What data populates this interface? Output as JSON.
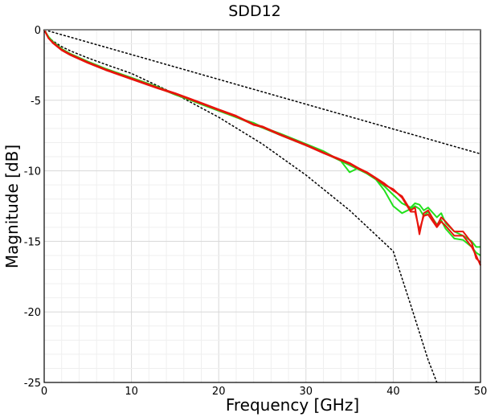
{
  "chart_data": {
    "type": "line",
    "title": "SDD12",
    "xlabel": "Frequency [GHz]",
    "ylabel": "Magnitude [dB]",
    "xlim": [
      0,
      50
    ],
    "ylim": [
      -25,
      0
    ],
    "xticks": [
      0,
      10,
      20,
      30,
      40,
      50
    ],
    "yticks": [
      0,
      -5,
      -10,
      -15,
      -20,
      -25
    ],
    "grid": "on (major and minor)",
    "legend": "none",
    "x": [
      0,
      0.5,
      1,
      2,
      3,
      5,
      7,
      10,
      13,
      15,
      17,
      20,
      22,
      24,
      25,
      27,
      30,
      32,
      34,
      35,
      36,
      37,
      38,
      39,
      40,
      41,
      42,
      42.5,
      43,
      43.5,
      44,
      45,
      45.5,
      46,
      47,
      48,
      49,
      49.5,
      50
    ],
    "series": [
      {
        "color": "#e8140c",
        "values": [
          0,
          -0.6,
          -0.9,
          -1.4,
          -1.75,
          -2.3,
          -2.8,
          -3.45,
          -4.1,
          -4.5,
          -4.95,
          -5.65,
          -6.1,
          -6.7,
          -6.85,
          -7.4,
          -8.15,
          -8.7,
          -9.2,
          -9.45,
          -9.8,
          -10.1,
          -10.5,
          -10.9,
          -11.4,
          -11.8,
          -12.8,
          -12.6,
          -14.5,
          -13.0,
          -12.8,
          -13.9,
          -13.3,
          -13.6,
          -14.3,
          -14.3,
          -15.1,
          -16.2,
          -16.5
        ]
      },
      {
        "color": "#e8140c",
        "values": [
          0,
          -0.6,
          -0.95,
          -1.45,
          -1.8,
          -2.35,
          -2.85,
          -3.5,
          -4.15,
          -4.55,
          -5.0,
          -5.7,
          -6.15,
          -6.75,
          -6.9,
          -7.45,
          -8.2,
          -8.75,
          -9.25,
          -9.5,
          -9.85,
          -10.15,
          -10.55,
          -11.0,
          -11.3,
          -11.9,
          -12.9,
          -12.9,
          -14.2,
          -13.2,
          -13.1,
          -14.0,
          -13.6,
          -13.9,
          -14.6,
          -14.6,
          -15.4,
          -16.0,
          -16.7
        ]
      },
      {
        "color": "#22e01c",
        "values": [
          0,
          -0.5,
          -0.85,
          -1.35,
          -1.7,
          -2.25,
          -2.75,
          -3.4,
          -4.05,
          -4.55,
          -5.0,
          -5.7,
          -6.2,
          -6.6,
          -6.9,
          -7.35,
          -8.1,
          -8.6,
          -9.3,
          -9.6,
          -9.9,
          -10.2,
          -10.6,
          -11.1,
          -11.7,
          -12.3,
          -12.6,
          -12.3,
          -12.4,
          -12.8,
          -12.6,
          -13.3,
          -13.0,
          -13.7,
          -14.3,
          -14.6,
          -15.0,
          -15.4,
          -15.4
        ]
      },
      {
        "color": "#22e01c",
        "values": [
          0,
          -0.55,
          -0.9,
          -1.4,
          -1.75,
          -2.3,
          -2.8,
          -3.45,
          -4.1,
          -4.6,
          -5.05,
          -5.75,
          -6.2,
          -6.7,
          -6.95,
          -7.45,
          -8.2,
          -8.7,
          -9.3,
          -10.1,
          -9.8,
          -10.2,
          -10.6,
          -11.4,
          -12.5,
          -13.0,
          -12.7,
          -12.5,
          -12.7,
          -13.2,
          -12.9,
          -13.8,
          -13.5,
          -14.1,
          -14.8,
          -14.9,
          -15.4,
          -15.8,
          -16.0
        ]
      },
      {
        "color": "#000000",
        "style": "dotted",
        "x": [
          0,
          10,
          20,
          30,
          40,
          50
        ],
        "values": [
          0,
          -1.76,
          -3.52,
          -5.28,
          -7.04,
          -8.8
        ]
      },
      {
        "color": "#000000",
        "style": "dotted",
        "x": [
          0,
          0.5,
          1,
          2,
          3,
          5,
          7,
          10,
          15,
          20,
          25,
          30,
          35,
          40,
          42,
          44,
          45
        ],
        "values": [
          0,
          -0.55,
          -0.8,
          -1.2,
          -1.5,
          -2.0,
          -2.45,
          -3.1,
          -4.55,
          -6.2,
          -8.1,
          -10.3,
          -12.8,
          -15.7,
          -19.5,
          -23.4,
          -25.3
        ]
      }
    ]
  }
}
